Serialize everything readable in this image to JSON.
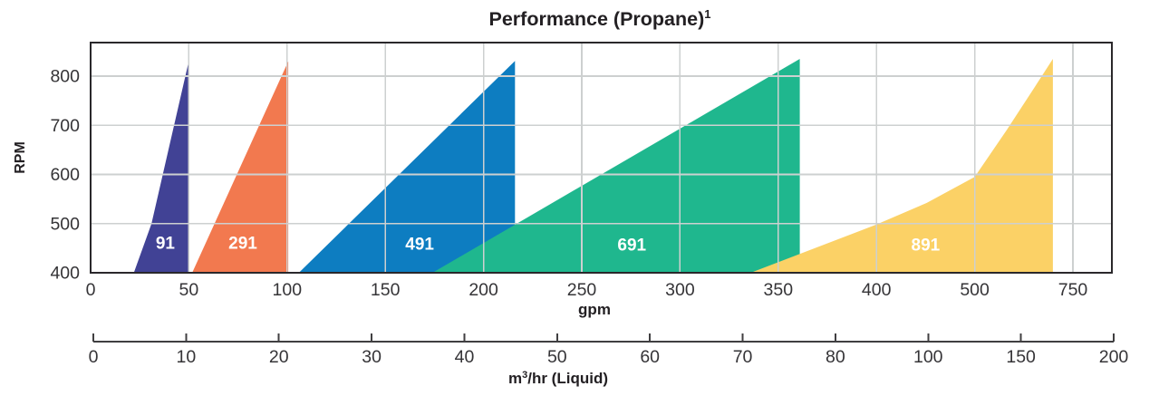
{
  "title": {
    "text": "Performance (Propane)",
    "superscript": "1"
  },
  "chart_data": {
    "type": "area",
    "title": "Performance (Propane)¹",
    "ylabel": "RPM",
    "xlabel_primary": "gpm",
    "xlabel_secondary_parts": {
      "pre": "m",
      "sup": "3",
      "post": "/hr (Liquid)"
    },
    "y_axis": {
      "ticks": [
        400,
        500,
        600,
        700,
        800
      ],
      "min": 400,
      "max_frame": 868
    },
    "x_axis_gpm": {
      "ticks": [
        0,
        50,
        100,
        150,
        200,
        250,
        300,
        350,
        400,
        500,
        750
      ],
      "note": "ticks equally spaced; scale is non-linear above 400 gpm"
    },
    "x_axis_m3hr": {
      "ticks": [
        0,
        10,
        20,
        30,
        40,
        50,
        60,
        70,
        80,
        100,
        150,
        200
      ],
      "note": "ticks equally spaced; secondary liquid-flow scale"
    },
    "grid": true,
    "legend": "labels drawn inside areas",
    "series": [
      {
        "name": "91",
        "color": "#414295",
        "points_gpm_rpm": [
          [
            22,
            400
          ],
          [
            31,
            500
          ],
          [
            50,
            831
          ],
          [
            50,
            400
          ]
        ],
        "label_at": [
          38,
          461
        ]
      },
      {
        "name": "291",
        "color": "#f2794f",
        "points_gpm_rpm": [
          [
            51.7,
            400
          ],
          [
            100.6,
            830
          ],
          [
            100.6,
            400
          ]
        ],
        "label_at": [
          77.5,
          461
        ]
      },
      {
        "name": "491",
        "color": "#0d7dc1",
        "points_gpm_rpm": [
          [
            106,
            400
          ],
          [
            216,
            831
          ],
          [
            216,
            400
          ]
        ],
        "label_at": [
          167.5,
          459
        ]
      },
      {
        "name": "691",
        "color": "#1fb78e",
        "points_gpm_rpm": [
          [
            174,
            400
          ],
          [
            361,
            835
          ],
          [
            361,
            400
          ]
        ],
        "label_at": [
          275.5,
          457
        ]
      },
      {
        "name": "891",
        "color": "#fbd166",
        "points_gpm_rpm": [
          [
            336,
            400
          ],
          [
            400,
            498
          ],
          [
            451,
            542
          ],
          [
            500,
            595
          ],
          [
            582,
            691
          ],
          [
            648,
            772
          ],
          [
            699,
            835
          ],
          [
            699,
            400
          ]
        ],
        "label_at": [
          450,
          457
        ]
      }
    ],
    "colors": {
      "grid": "#cdd0d0",
      "frame": "#2a282b",
      "axis_line": "#403f41",
      "tick_text": "#353437",
      "title_text": "#232023",
      "series_label_text": "#ffffff"
    }
  }
}
